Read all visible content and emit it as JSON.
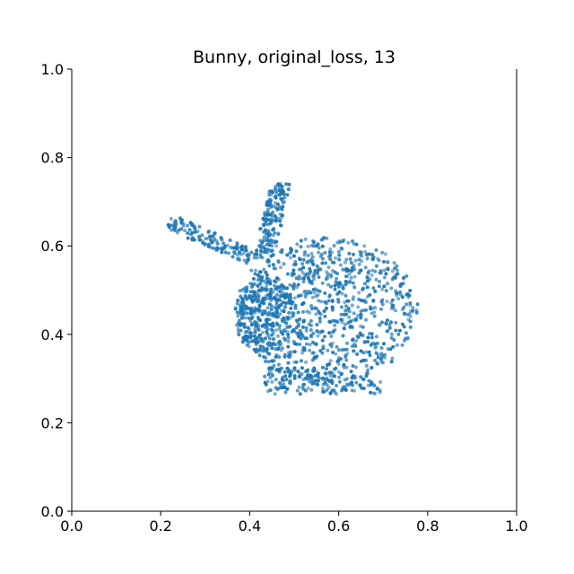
{
  "chart_data": {
    "type": "scatter",
    "title": "Bunny, original_loss, 13",
    "xlabel": "",
    "ylabel": "",
    "xlim": [
      0.0,
      1.0
    ],
    "ylim": [
      0.0,
      1.0
    ],
    "x_ticks": [
      "0.0",
      "0.2",
      "0.4",
      "0.6",
      "0.8",
      "1.0"
    ],
    "y_ticks": [
      "0.0",
      "0.2",
      "0.4",
      "0.6",
      "0.8",
      "1.0"
    ],
    "grid": false,
    "legend": "none",
    "point_color": "#1f77b4",
    "series": [
      {
        "shape": {
          "body": {
            "cx": 0.575,
            "cy": 0.455,
            "rx": 0.205,
            "ry": 0.165
          },
          "head": {
            "cx": 0.435,
            "cy": 0.44,
            "rx": 0.07,
            "ry": 0.085
          },
          "ear_upper": {
            "x0": 0.43,
            "y0": 0.565,
            "x1": 0.47,
            "y1": 0.745,
            "w": 0.045
          },
          "ear_lower": {
            "x0": 0.22,
            "y0": 0.655,
            "x1": 0.4,
            "y1": 0.575,
            "w": 0.035
          },
          "base": {
            "x0": 0.43,
            "x1": 0.7,
            "y0": 0.265,
            "y1": 0.335
          }
        }
      }
    ]
  }
}
